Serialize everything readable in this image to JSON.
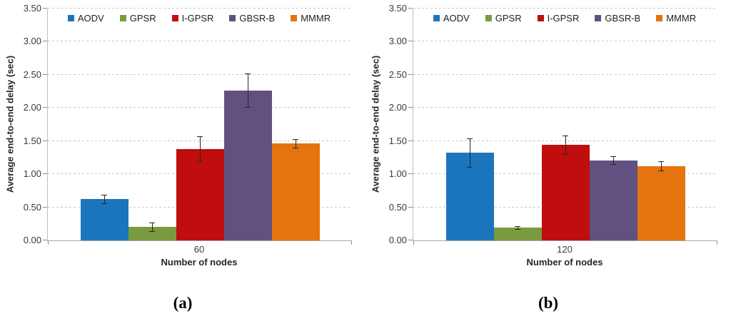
{
  "palette": {
    "grid": "#C9C9C9",
    "axis": "#A8A8A8",
    "error_bar": "#262626",
    "text": "#3A3A3A"
  },
  "chart_data": [
    {
      "type": "bar",
      "panel": "a",
      "caption": "(a)",
      "title": "",
      "categories": [
        "60"
      ],
      "xlabel": "Number of nodes",
      "ylabel": "Average end-to-end delay (sec)",
      "ylim": [
        0,
        3.5
      ],
      "ytick_step": 0.5,
      "ytick_labels": [
        "0.00",
        "0.50",
        "1.00",
        "1.50",
        "2.00",
        "2.50",
        "3.00",
        "3.50"
      ],
      "grid": "horizontal-dashed",
      "legend_position": "top-center",
      "series": [
        {
          "name": "AODV",
          "color": "#1B75BD",
          "values": [
            0.62
          ],
          "errors": [
            0.06
          ]
        },
        {
          "name": "GPSR",
          "color": "#7A9A40",
          "values": [
            0.2
          ],
          "errors": [
            0.06
          ]
        },
        {
          "name": "I-GPSR",
          "color": "#C00D0D",
          "values": [
            1.38
          ],
          "errors": [
            0.19
          ]
        },
        {
          "name": "GBSR-B",
          "color": "#615180",
          "values": [
            2.26
          ],
          "errors": [
            0.25
          ]
        },
        {
          "name": "MMMR",
          "color": "#E5740E",
          "values": [
            1.46
          ],
          "errors": [
            0.06
          ]
        }
      ]
    },
    {
      "type": "bar",
      "panel": "b",
      "caption": "(b)",
      "title": "",
      "categories": [
        "120"
      ],
      "xlabel": "Number of nodes",
      "ylabel": "Average end-to-end delay (sec)",
      "ylim": [
        0,
        3.5
      ],
      "ytick_step": 0.5,
      "ytick_labels": [
        "0.00",
        "0.50",
        "1.00",
        "1.50",
        "2.00",
        "2.50",
        "3.00",
        "3.50"
      ],
      "grid": "horizontal-dashed",
      "legend_position": "top-center",
      "series": [
        {
          "name": "AODV",
          "color": "#1B75BD",
          "values": [
            1.32
          ],
          "errors": [
            0.22
          ]
        },
        {
          "name": "GPSR",
          "color": "#7A9A40",
          "values": [
            0.19
          ],
          "errors": [
            0.02
          ]
        },
        {
          "name": "I-GPSR",
          "color": "#C00D0D",
          "values": [
            1.44
          ],
          "errors": [
            0.14
          ]
        },
        {
          "name": "GBSR-B",
          "color": "#615180",
          "values": [
            1.21
          ],
          "errors": [
            0.06
          ]
        },
        {
          "name": "MMMR",
          "color": "#E5740E",
          "values": [
            1.12
          ],
          "errors": [
            0.07
          ]
        }
      ]
    }
  ]
}
